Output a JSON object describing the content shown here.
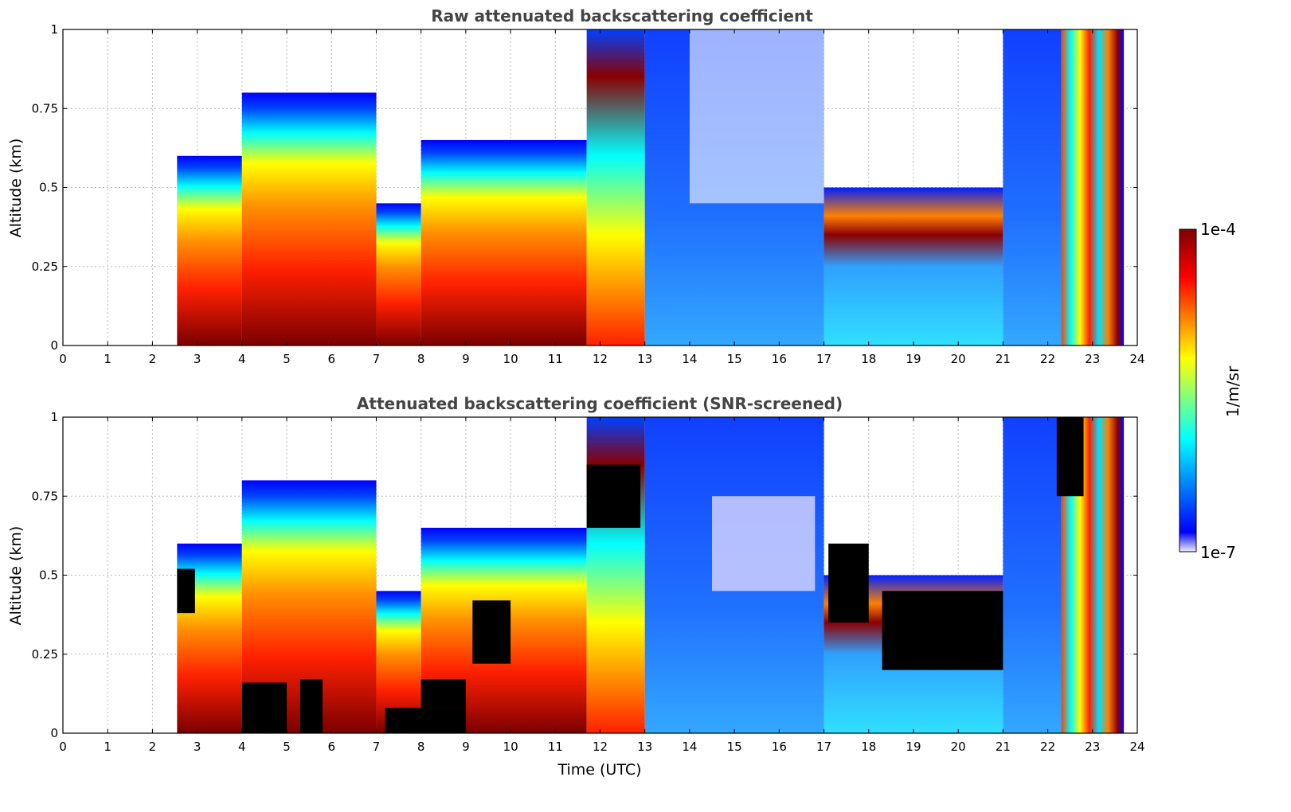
{
  "chart_data": [
    {
      "type": "heatmap",
      "title": "Raw attenuated backscattering coefficient",
      "xlabel": "",
      "ylabel": "Altitude (km)",
      "xlim": [
        0,
        24
      ],
      "ylim": [
        0,
        1
      ],
      "x_ticks": [
        "0",
        "1",
        "2",
        "3",
        "4",
        "5",
        "6",
        "7",
        "8",
        "9",
        "10",
        "11",
        "12",
        "13",
        "14",
        "15",
        "16",
        "17",
        "18",
        "19",
        "20",
        "21",
        "22",
        "23",
        "24"
      ],
      "y_ticks": [
        "0",
        "0.25",
        "0.5",
        "0.75",
        "1"
      ],
      "grid": true,
      "colorscale": "jet",
      "data_start_utc": 2.55,
      "data_end_utc": 23.7,
      "segments": [
        {
          "t0": 2.55,
          "t1": 4.0,
          "level": "high",
          "top_km": 0.6
        },
        {
          "t0": 4.0,
          "t1": 7.0,
          "level": "high",
          "top_km": 0.8
        },
        {
          "t0": 7.0,
          "t1": 8.0,
          "level": "high",
          "top_km": 0.45
        },
        {
          "t0": 8.0,
          "t1": 11.7,
          "level": "high",
          "top_km": 0.65
        },
        {
          "t0": 11.7,
          "t1": 13.0,
          "level": "medium",
          "top_km": 1.0
        },
        {
          "t0": 13.0,
          "t1": 17.0,
          "level": "low",
          "top_km": 1.0
        },
        {
          "t0": 17.0,
          "t1": 21.0,
          "level": "low",
          "top_km": 0.5
        },
        {
          "t0": 21.0,
          "t1": 22.3,
          "level": "low",
          "top_km": 1.0
        },
        {
          "t0": 22.3,
          "t1": 23.7,
          "level": "mixed",
          "top_km": 1.0
        }
      ]
    },
    {
      "type": "heatmap",
      "title": "Attenuated backscattering coefficient (SNR-screened)",
      "xlabel": "Time (UTC)",
      "ylabel": "Altitude (km)",
      "xlim": [
        0,
        24
      ],
      "ylim": [
        0,
        1
      ],
      "x_ticks": [
        "0",
        "1",
        "2",
        "3",
        "4",
        "5",
        "6",
        "7",
        "8",
        "9",
        "10",
        "11",
        "12",
        "13",
        "14",
        "15",
        "16",
        "17",
        "18",
        "19",
        "20",
        "21",
        "22",
        "23",
        "24"
      ],
      "y_ticks": [
        "0",
        "0.25",
        "0.5",
        "0.75",
        "1"
      ],
      "grid": true,
      "colorscale": "jet",
      "data_start_utc": 2.55,
      "data_end_utc": 23.7,
      "screened_color": "#000000"
    }
  ],
  "colorbar": {
    "max_label": "1e-4",
    "min_label": "1e-7",
    "label": "1/m/sr",
    "stops": [
      "#f0f0ff",
      "#0000ff",
      "#00ffff",
      "#ffff00",
      "#ff0000",
      "#800000"
    ]
  }
}
